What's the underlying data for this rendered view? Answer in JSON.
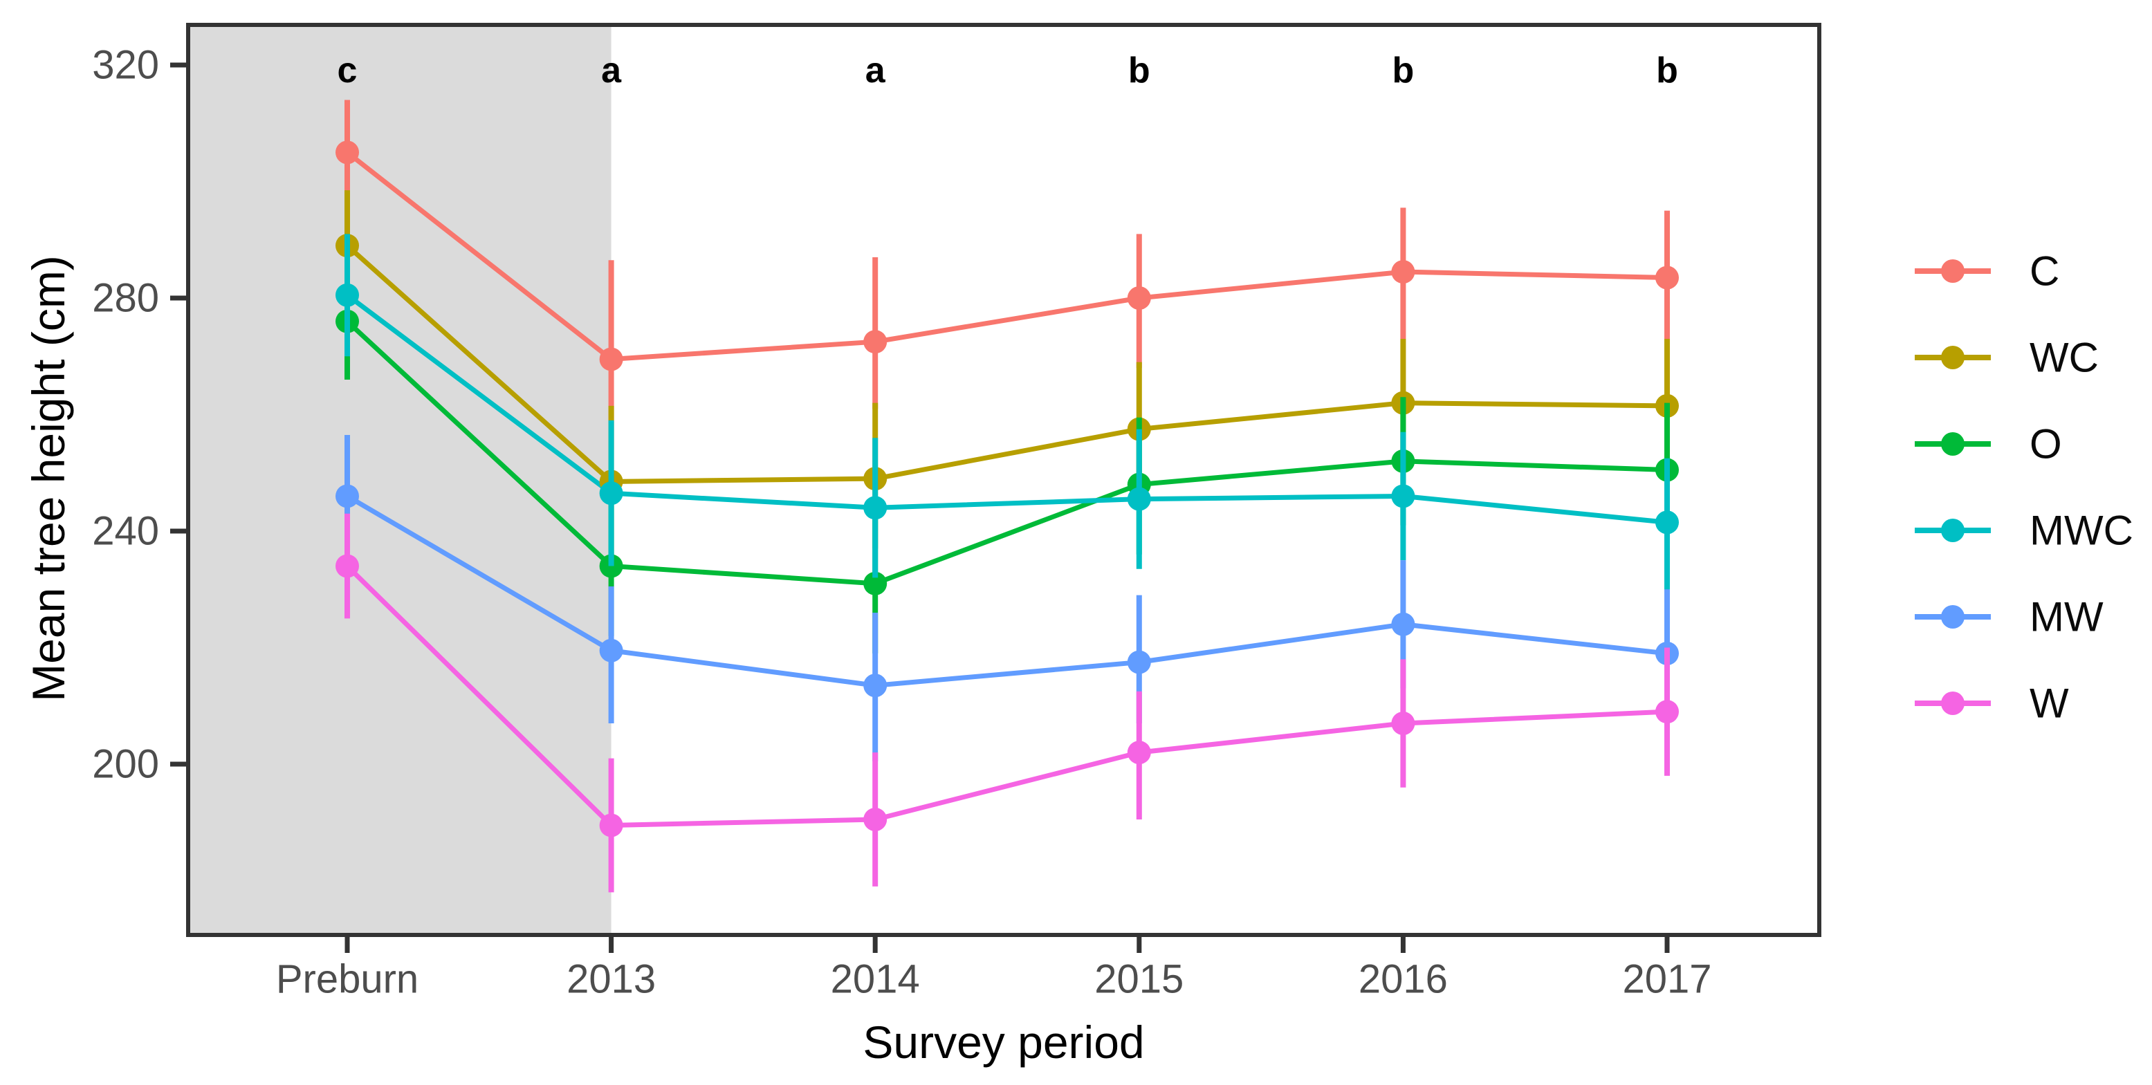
{
  "chart_data": {
    "type": "line",
    "title": "",
    "xlabel": "Survey period",
    "ylabel": "Mean tree height (cm)",
    "categories": [
      "Preburn",
      "2013",
      "2014",
      "2015",
      "2016",
      "2017"
    ],
    "yticks": [
      200,
      240,
      280,
      320
    ],
    "ylim": [
      171,
      328
    ],
    "grid": false,
    "legend_position": "right",
    "significance_letters": [
      "c",
      "a",
      "a",
      "b",
      "b",
      "b"
    ],
    "shaded_region": {
      "from_category": "Preburn",
      "to_category": "2013",
      "color": "#DBDBDB"
    },
    "series": [
      {
        "name": "C",
        "color": "#F8766D",
        "values": [
          305,
          269.5,
          272.5,
          280,
          284.5,
          283.5
        ],
        "ci_low": [
          295,
          254,
          261,
          268,
          273,
          272
        ],
        "ci_high": [
          314,
          286.5,
          287,
          291,
          295.5,
          295
        ]
      },
      {
        "name": "WC",
        "color": "#B79F00",
        "values": [
          289,
          248.5,
          249,
          257.5,
          262,
          261.5
        ],
        "ci_low": [
          278,
          235,
          237,
          245,
          251,
          250
        ],
        "ci_high": [
          298.5,
          261.5,
          262,
          269,
          273,
          273
        ]
      },
      {
        "name": "O",
        "color": "#00BA38",
        "values": [
          276,
          234,
          231,
          248,
          252,
          250.5
        ],
        "ci_low": [
          266,
          222,
          219,
          236,
          241,
          239
        ],
        "ci_high": [
          286,
          246,
          243,
          259.5,
          263,
          262
        ]
      },
      {
        "name": "MWC",
        "color": "#00BFC4",
        "values": [
          280.5,
          246.5,
          244,
          245.5,
          246,
          241.5
        ],
        "ci_low": [
          270,
          234,
          232,
          233.5,
          235,
          228
        ],
        "ci_high": [
          291,
          259,
          256,
          257.5,
          257,
          252.5
        ]
      },
      {
        "name": "MW",
        "color": "#619CFF",
        "values": [
          246,
          219.5,
          213.5,
          217.5,
          224,
          219
        ],
        "ci_low": [
          236,
          207,
          200.5,
          207,
          213,
          208
        ],
        "ci_high": [
          256.5,
          230.5,
          226,
          229,
          235,
          230
        ]
      },
      {
        "name": "W",
        "color": "#F564E3",
        "values": [
          234,
          189.5,
          190.5,
          202,
          207,
          209
        ],
        "ci_low": [
          225,
          178,
          179,
          190.5,
          196,
          198
        ],
        "ci_high": [
          243,
          201,
          202,
          212.5,
          218,
          220
        ]
      }
    ]
  },
  "style": {
    "axis_line_color": "#333333",
    "tick_label_color": "#4D4D4D",
    "legend_text_color": "#0a0a0a",
    "letter_color": "#000000"
  }
}
